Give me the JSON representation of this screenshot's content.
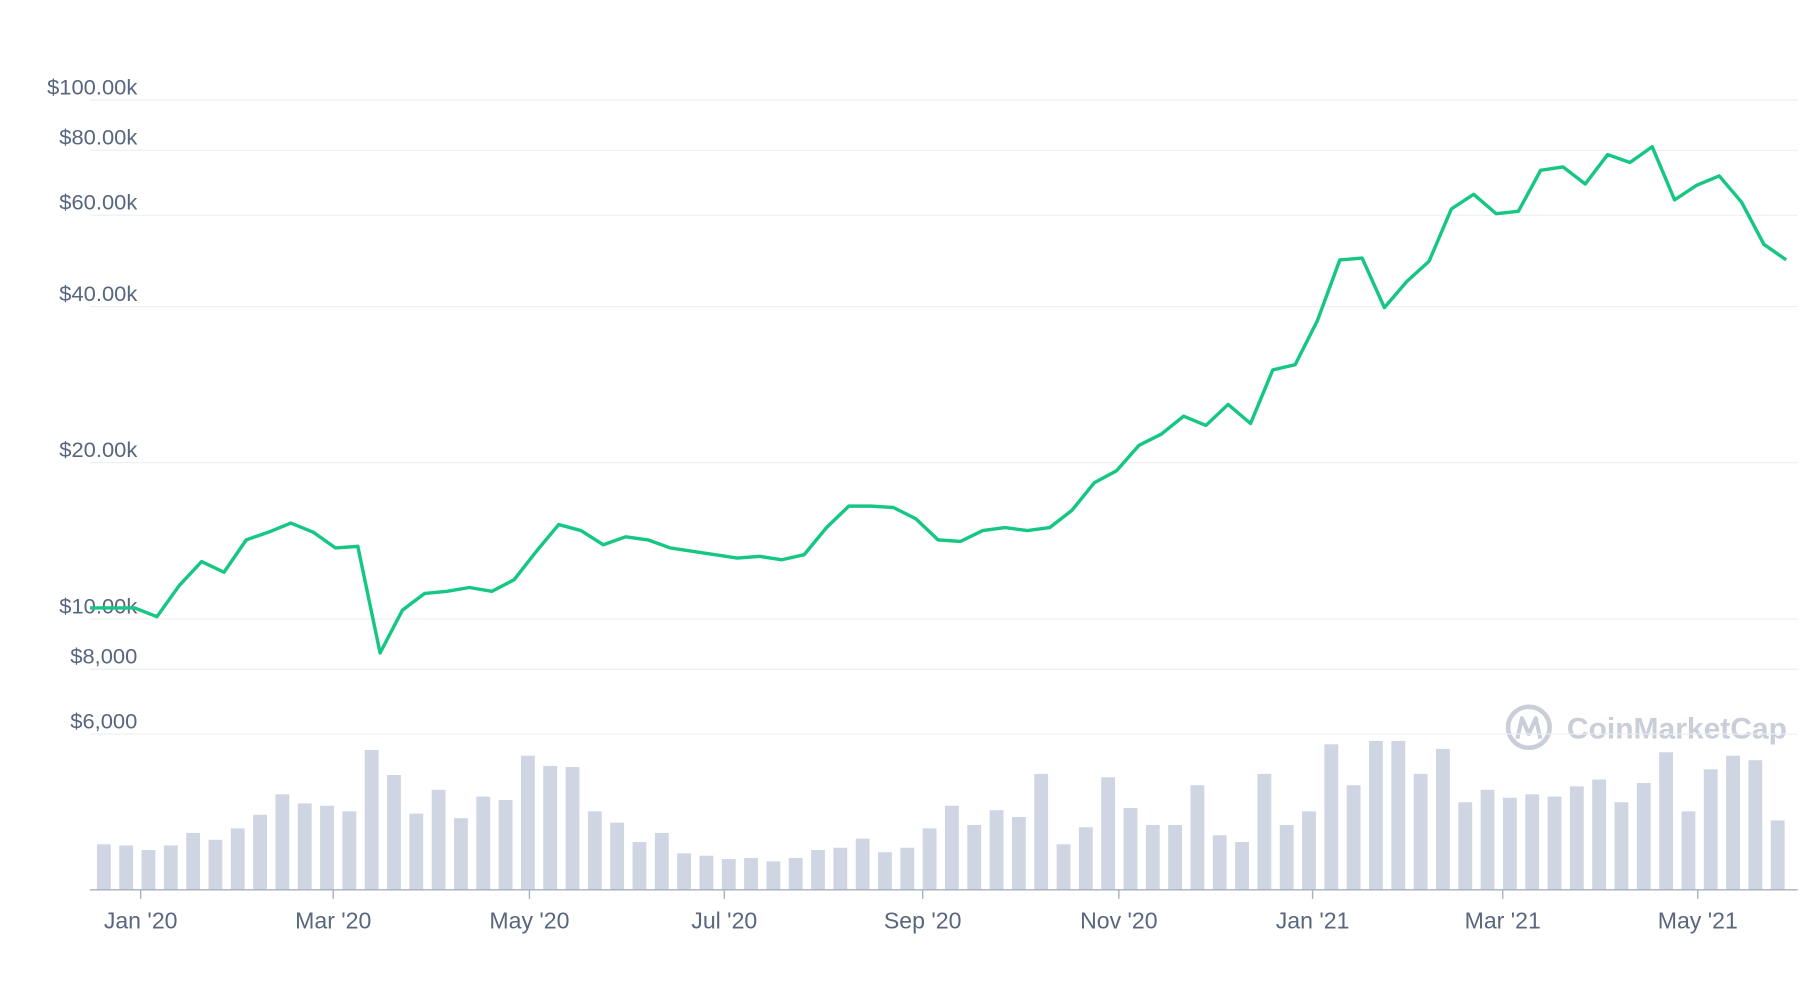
{
  "chart_data": {
    "type": "line",
    "watermark": "CoinMarketCap",
    "log_scale": true,
    "grid": true,
    "categories": [
      null,
      null,
      null,
      null,
      null,
      null,
      null,
      null,
      null,
      null,
      null,
      null,
      null,
      null,
      null,
      null,
      null,
      null,
      null,
      null,
      null,
      null,
      null,
      null,
      null,
      null,
      null,
      null,
      null,
      null,
      null,
      null,
      null,
      null,
      null,
      null,
      null,
      null,
      null,
      null,
      null,
      null,
      null,
      null,
      null,
      null,
      null,
      null,
      null,
      null,
      null,
      null,
      null,
      null,
      null,
      null,
      null,
      null,
      null,
      null,
      null,
      null,
      null,
      null,
      null,
      null,
      null,
      null,
      null,
      null,
      null,
      null,
      null,
      null,
      null,
      null,
      null
    ],
    "xticks": [
      {
        "value": 2.27,
        "label": "Jan '20"
      },
      {
        "value": 10.9,
        "label": "Mar '20"
      },
      {
        "value": 19.69,
        "label": "May '20"
      },
      {
        "value": 28.42,
        "label": "Jul '20"
      },
      {
        "value": 37.31,
        "label": "Sep '20"
      },
      {
        "value": 46.1,
        "label": "Nov '20"
      },
      {
        "value": 54.78,
        "label": "Jan '21"
      },
      {
        "value": 63.3,
        "label": "Mar '21"
      },
      {
        "value": 72.04,
        "label": "May '21"
      }
    ],
    "ylim": [
      6000,
      100000
    ],
    "yticks": [
      {
        "value": 6000,
        "label": "$6,000"
      },
      {
        "value": 8000,
        "label": "$8,000"
      },
      {
        "value": 10000,
        "label": "$10.00k"
      },
      {
        "value": 20000,
        "label": "$20.00k"
      },
      {
        "value": 40000,
        "label": "$40.00k"
      },
      {
        "value": 60000,
        "label": "$60.00k"
      },
      {
        "value": 80000,
        "label": "$80.00k"
      },
      {
        "value": 100000,
        "label": "$100.00k"
      }
    ],
    "series": [
      {
        "color": "#16c784",
        "values": [
          10500,
          10500,
          10500,
          10100,
          11600,
          12900,
          12300,
          14200,
          14700,
          15300,
          14700,
          13700,
          13800,
          8600,
          10400,
          11200,
          11300,
          11500,
          11300,
          11900,
          13500,
          15200,
          14800,
          13900,
          14400,
          14200,
          13700,
          13500,
          13300,
          13100,
          13200,
          13000,
          13300,
          15000,
          16500,
          16500,
          16400,
          15600,
          14200,
          14100,
          14800,
          15000,
          14800,
          15000,
          16200,
          18300,
          19300,
          21600,
          22700,
          24600,
          23600,
          25900,
          23800,
          30200,
          30900,
          37600,
          49200,
          49600,
          39800,
          44700,
          48900,
          61700,
          65800,
          60400,
          61000,
          73200,
          74300,
          68900,
          78500,
          75800,
          81300,
          64200,
          68500,
          71400,
          63600,
          52700,
          49200
        ]
      },
      {
        "type": "bar",
        "color": "#cfd5e3",
        "values": [
          40,
          39,
          35,
          39,
          50,
          44,
          54,
          66,
          84,
          76,
          74,
          69,
          123,
          101,
          67,
          88,
          63,
          82,
          79,
          118,
          109,
          108,
          69,
          59,
          42,
          50,
          32,
          30,
          27,
          28,
          25,
          28,
          35,
          37,
          45,
          33,
          37,
          54,
          74,
          57,
          70,
          64,
          102,
          40,
          55,
          99,
          72,
          57,
          57,
          92,
          48,
          42,
          102,
          57,
          69,
          128,
          92,
          131,
          131,
          102,
          124,
          77,
          88,
          81,
          84,
          82,
          91,
          97,
          77,
          94,
          121,
          69,
          106,
          118,
          114,
          61,
          null
        ]
      }
    ]
  }
}
